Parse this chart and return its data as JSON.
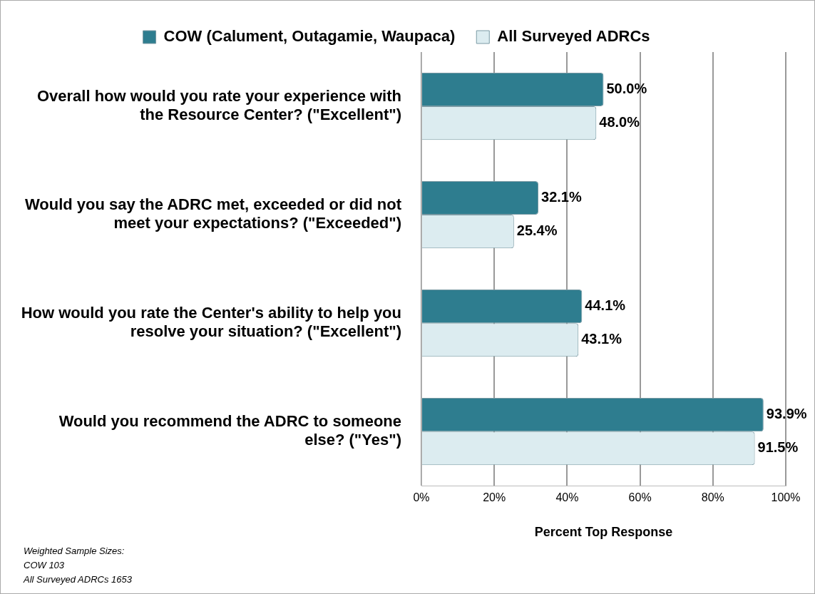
{
  "chart_data": {
    "type": "bar",
    "orientation": "horizontal",
    "categories": [
      "Overall how would you rate your experience with the Resource Center? (\"Excellent\")",
      "Would you say the ADRC met, exceeded or did not meet your expectations? (\"Exceeded\")",
      "How would you rate the Center's ability to help you resolve your situation? (\"Excellent\")",
      "Would you recommend the ADRC to someone else? (\"Yes\")"
    ],
    "series": [
      {
        "name": "COW (Calument, Outagamie, Waupaca)",
        "color": "#2e7d8f",
        "values": [
          50.0,
          32.1,
          44.1,
          93.9
        ],
        "value_labels": [
          "50.0%",
          "32.1%",
          "44.1%",
          "93.9%"
        ]
      },
      {
        "name": "All Surveyed ADRCs",
        "color": "#dcecf0",
        "values": [
          48.0,
          25.4,
          43.1,
          91.5
        ],
        "value_labels": [
          "48.0%",
          "25.4%",
          "43.1%",
          "91.5%"
        ]
      }
    ],
    "xlabel": "Percent Top Response",
    "xlim": [
      0,
      100
    ],
    "xticks": [
      {
        "value": 0,
        "label": "0%"
      },
      {
        "value": 20,
        "label": "20%"
      },
      {
        "value": 40,
        "label": "40%"
      },
      {
        "value": 60,
        "label": "60%"
      },
      {
        "value": 80,
        "label": "80%"
      },
      {
        "value": 100,
        "label": "100%"
      }
    ],
    "grid": "x",
    "legend": "top",
    "annotations": [
      "Weighted Sample Sizes:\nCOW 103\nAll Surveyed ADRCs 1653"
    ]
  }
}
